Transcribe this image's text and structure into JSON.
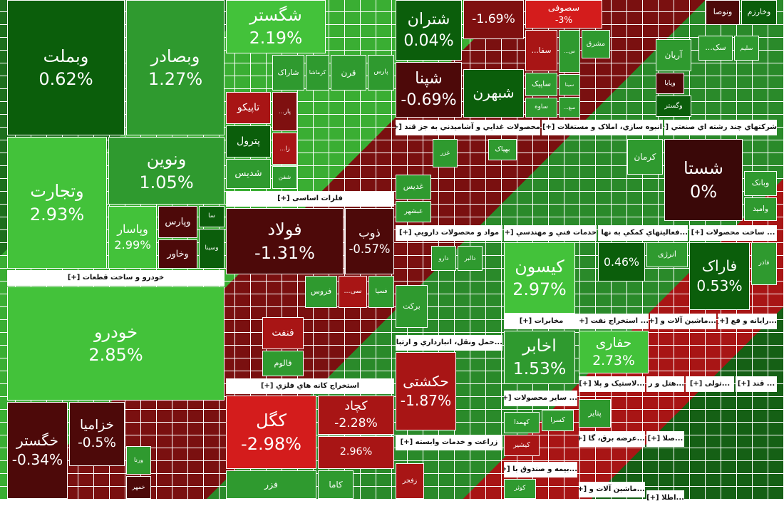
{
  "tiles": [
    {
      "label": "وبملت",
      "change": "0.62%"
    },
    {
      "label": "وبصادر",
      "change": "1.27%"
    },
    {
      "label": "وتجارت",
      "change": "2.93%"
    },
    {
      "label": "ونوین",
      "change": "1.05%"
    },
    {
      "label": "وپاسار",
      "change": "2.99%"
    },
    {
      "label": "وپارس"
    },
    {
      "label": "سا"
    },
    {
      "label": "وسینا"
    },
    {
      "label": "وخاور"
    },
    {
      "label": "خودرو",
      "change": "2.85%"
    },
    {
      "label": "خگستر",
      "change": "-0.34%"
    },
    {
      "label": "خزامیا",
      "change": "-0.5%"
    },
    {
      "label": "ورنا"
    },
    {
      "label": "خمهر"
    },
    {
      "label": "شگستر",
      "change": "2.19%"
    },
    {
      "label": "شاراک"
    },
    {
      "label": "کرماشا"
    },
    {
      "label": "قرن"
    },
    {
      "label": "پارس"
    },
    {
      "label": "تاپیکو"
    },
    {
      "label": "...پار"
    },
    {
      "label": "پترول"
    },
    {
      "label": "...زا"
    },
    {
      "label": "شدیس"
    },
    {
      "label": "شفن"
    },
    {
      "label": "فولاد",
      "change": "-1.31%"
    },
    {
      "label": "ذوب",
      "change": "-0.57%"
    },
    {
      "label": "فروس"
    },
    {
      "label": "...سی"
    },
    {
      "label": "فسپا"
    },
    {
      "label": "فنفت"
    },
    {
      "label": "فالوم"
    },
    {
      "label": "کگل",
      "change": "-2.98%"
    },
    {
      "label": "کچاد",
      "change": "-2.28%"
    },
    {
      "change": "2.96%"
    },
    {
      "label": "فزر"
    },
    {
      "label": "کاما"
    },
    {
      "label": "شتران",
      "change": "0.04%"
    },
    {
      "label": "شپنا",
      "change": "-0.69%"
    },
    {
      "change": "-1.69%"
    },
    {
      "label": "شبهرن"
    },
    {
      "label": "سصوفی",
      "change": "-3%"
    },
    {
      "label": "...سفا"
    },
    {
      "label": "...س"
    },
    {
      "label": "مشرق"
    },
    {
      "label": "ساپیک"
    },
    {
      "label": "ساوه"
    },
    {
      "label": "سینا"
    },
    {
      "label": "...سغ"
    },
    {
      "label": "ونوصا"
    },
    {
      "label": "وخارزم"
    },
    {
      "label": "آریان"
    },
    {
      "label": "سلیم"
    },
    {
      "label": "...سک"
    },
    {
      "label": "وپایا"
    },
    {
      "label": "وگستر"
    },
    {
      "label": "غدیس"
    },
    {
      "label": "غزر"
    },
    {
      "label": "غبشهر"
    },
    {
      "label": "بهپاک"
    },
    {
      "label": "کرمان"
    },
    {
      "label": "شستا",
      "change": "0%"
    },
    {
      "label": "وبانک"
    },
    {
      "label": "وامید"
    },
    {
      "label": "برکت"
    },
    {
      "label": "دارو"
    },
    {
      "label": "دالبر"
    },
    {
      "label": "کیسون",
      "change": "2.97%"
    },
    {
      "label": "انرژی"
    },
    {
      "change": "0.46%"
    },
    {
      "label": "فاراک",
      "change": "0.53%"
    },
    {
      "label": "فاذر"
    },
    {
      "label": "اخابر",
      "change": "1.53%"
    },
    {
      "label": "حفاری",
      "change": "2.73%"
    },
    {
      "label": "حکشتی",
      "change": "-1.87%"
    },
    {
      "label": "زفجر"
    },
    {
      "label": "کسرا"
    },
    {
      "label": "کهمدا"
    },
    {
      "label": "کیشیر"
    },
    {
      "label": "پتایر"
    },
    {
      "label": "کوثر"
    }
  ],
  "sectors": [
    {
      "title": "خودرو و ساخت قطعات [+]"
    },
    {
      "title": "فلزات اساسی [+]"
    },
    {
      "title": "استخراج کانه هاي فلزي [+]"
    },
    {
      "title": "محصولات غذايي و آشاميدني به جز قند [+]"
    },
    {
      "title": "انبوه سازي، املاک و مستغلات [+]"
    },
    {
      "title": "شرکتهاي چند رشته اي صنعتي [+]"
    },
    {
      "title": "مواد و محصولات دارويي [+]"
    },
    {
      "title": "خدمات فني و مهندسي [+]"
    },
    {
      "title": "...فعاليتهاي کمکي به نها [+]"
    },
    {
      "title": "... ساخت محصولات [+]"
    },
    {
      "title": "مخابرات [+]"
    },
    {
      "title": "... استخراج نفت [+]"
    },
    {
      "title": "...ماشين آلات و [+]"
    },
    {
      "title": "...رايانه و فع [+]"
    },
    {
      "title": "...حمل ونقل، انبارداري و ارتبا [+]"
    },
    {
      "title": "زراعت و خدمات وابسته [+]"
    },
    {
      "title": "... سایر محصولات [+]"
    },
    {
      "title": "...لاستيک و پلا [+]"
    },
    {
      "title": "...هتل و ر [+]"
    },
    {
      "title": "...تولی [+]"
    },
    {
      "title": "... قند [+]"
    },
    {
      "title": "...عرضه برق، گا [+]"
    },
    {
      "title": "...صلا [+]"
    },
    {
      "title": "...بیمه و صندوق با [+]"
    },
    {
      "title": "...ماشین آلات و [+]"
    },
    {
      "title": "...اطلا [+]"
    }
  ]
}
